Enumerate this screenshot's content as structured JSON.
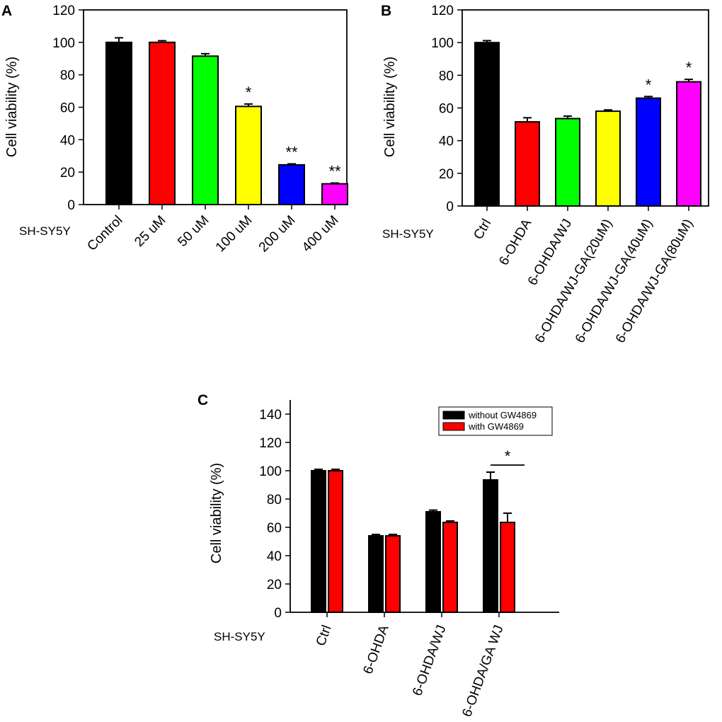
{
  "chart_data": [
    {
      "type": "bar",
      "panel": "A",
      "title": "",
      "ylabel": "Cell viability (%)",
      "xlabel": "",
      "cell_line": "SH-SY5Y",
      "ylim": [
        0,
        120
      ],
      "yticks": [
        0,
        20,
        40,
        60,
        80,
        100,
        120
      ],
      "categories": [
        "Control",
        "25 uM",
        "50 uM",
        "100 uM",
        "200 uM",
        "400 uM"
      ],
      "values": [
        100,
        100,
        91.5,
        60.5,
        24.5,
        12.8
      ],
      "errors": [
        2.8,
        1.0,
        1.5,
        1.5,
        0.6,
        0.5
      ],
      "colors": [
        "#000000",
        "#ff0000",
        "#00ff00",
        "#ffff00",
        "#0000ff",
        "#ff00ff"
      ],
      "significance": [
        "",
        "",
        "",
        "*",
        "**",
        "**"
      ]
    },
    {
      "type": "bar",
      "panel": "B",
      "title": "",
      "ylabel": "Cell viability (%)",
      "xlabel": "",
      "cell_line": "SH-SY5Y",
      "ylim": [
        0,
        120
      ],
      "yticks": [
        0,
        20,
        40,
        60,
        80,
        100,
        120
      ],
      "categories": [
        "Ctrl",
        "6-OHDA",
        "6-OHDA/WJ",
        "6-OHDA/WJ-GA(20uM)",
        "6-OHDA/WJ-GA(40uM)",
        "6-OHDA/WJ-GA(80uM)"
      ],
      "values": [
        100,
        51.5,
        53.5,
        58,
        66,
        76
      ],
      "errors": [
        1.2,
        2.5,
        1.5,
        0.8,
        1.0,
        1.5
      ],
      "colors": [
        "#000000",
        "#ff0000",
        "#00ff00",
        "#ffff00",
        "#0000ff",
        "#ff00ff"
      ],
      "significance": [
        "",
        "",
        "",
        "",
        "*",
        "*"
      ]
    },
    {
      "type": "bar",
      "panel": "C",
      "title": "",
      "ylabel": "Cell viability (%)",
      "xlabel": "",
      "cell_line": "SH-SY5Y",
      "ylim": [
        0,
        150
      ],
      "yticks": [
        0,
        20,
        40,
        60,
        80,
        100,
        120,
        140
      ],
      "categories": [
        "Ctrl",
        "6-OHDA",
        "6-OHDA/WJ",
        "6-OHDA/GA WJ"
      ],
      "series": [
        {
          "name": "without GW4869",
          "color": "#000000",
          "values": [
            100,
            54,
            71,
            93.5
          ],
          "errors": [
            1.0,
            1.0,
            1.2,
            5.5
          ]
        },
        {
          "name": "with GW4869",
          "color": "#ff0000",
          "values": [
            100,
            54,
            63.5,
            63.5
          ],
          "errors": [
            1.0,
            1.0,
            1.0,
            6.5
          ]
        }
      ],
      "legend_position": "top-right",
      "bracket": {
        "category_index": 3,
        "label": "*"
      }
    }
  ]
}
